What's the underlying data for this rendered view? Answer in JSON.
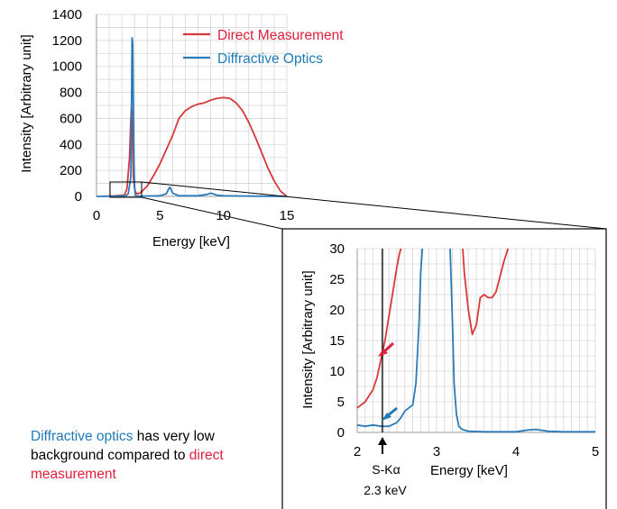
{
  "colors": {
    "red": "#d9383a",
    "blue": "#2b7bba",
    "redText": "#e0203a",
    "blueText": "#1f7ab8",
    "grid": "#d6d6d6"
  },
  "chart_data": [
    {
      "type": "line",
      "xlabel": "Energy [keV]",
      "ylabel": "Intensity [Arbitrary unit]",
      "xlim": [
        0,
        15
      ],
      "ylim": [
        0,
        1400
      ],
      "xticks": [
        "0",
        "5",
        "10",
        "15"
      ],
      "yticks": [
        "0",
        "200",
        "400",
        "600",
        "800",
        "1000",
        "1200",
        "1400"
      ],
      "grid": true,
      "legend_position": "top-right",
      "series": [
        {
          "name": "Direct Measurement",
          "color": "#d9383a",
          "x": [
            0.5,
            1.5,
            2.2,
            2.4,
            2.6,
            2.7,
            2.75,
            2.8,
            2.85,
            2.9,
            3.0,
            3.1,
            3.2,
            3.4,
            3.6,
            3.8,
            4.0,
            4.5,
            5.0,
            5.5,
            6.0,
            6.5,
            7.0,
            7.5,
            8.0,
            8.5,
            9.0,
            9.5,
            10.0,
            10.5,
            11.0,
            11.5,
            12.0,
            12.5,
            13.0,
            13.5,
            14.0,
            14.5,
            15.0
          ],
          "y": [
            0,
            5,
            10,
            60,
            300,
            580,
            690,
            630,
            380,
            150,
            60,
            30,
            20,
            25,
            40,
            60,
            80,
            160,
            250,
            360,
            470,
            600,
            660,
            690,
            710,
            720,
            740,
            755,
            760,
            755,
            720,
            660,
            570,
            460,
            340,
            220,
            120,
            40,
            0
          ]
        },
        {
          "name": "Diffractive Optics",
          "color": "#2b7bba",
          "x": [
            0,
            2.0,
            2.3,
            2.5,
            2.7,
            2.75,
            2.8,
            2.85,
            2.9,
            2.95,
            3.0,
            3.05,
            3.1,
            3.2,
            3.5,
            4.0,
            5.0,
            5.5,
            5.7,
            5.8,
            6.0,
            6.5,
            8.0,
            8.7,
            9.0,
            9.5,
            10.0,
            12.0,
            15.0
          ],
          "y": [
            0,
            2,
            5,
            20,
            150,
            600,
            1220,
            1180,
            700,
            250,
            80,
            20,
            5,
            2,
            2,
            3,
            5,
            20,
            60,
            70,
            25,
            5,
            5,
            15,
            25,
            10,
            5,
            2,
            0
          ]
        }
      ]
    },
    {
      "type": "line",
      "xlabel": "Energy [keV]",
      "ylabel": "Intensity [Arbitrary unit]",
      "xlim": [
        2,
        5
      ],
      "ylim": [
        0,
        30
      ],
      "xticks": [
        "2",
        "3",
        "4",
        "5"
      ],
      "yticks": [
        "0",
        "5",
        "10",
        "15",
        "20",
        "25",
        "30"
      ],
      "grid": true,
      "annotations": [
        {
          "label": "S-Kα",
          "sublabel": "2.3 keV",
          "x": 2.3
        }
      ],
      "series": [
        {
          "name": "Direct Measurement",
          "color": "#d9383a",
          "x": [
            2.0,
            2.05,
            2.1,
            2.15,
            2.2,
            2.25,
            2.3,
            2.35,
            2.4,
            2.45,
            2.5,
            2.53,
            2.55
          ],
          "y": [
            4,
            4.5,
            5,
            6,
            7,
            9,
            12,
            15,
            19,
            23,
            27,
            29,
            30
          ]
        },
        {
          "name": "Direct Measurement (right)",
          "color": "#d9383a",
          "x": [
            3.33,
            3.35,
            3.4,
            3.45,
            3.5,
            3.55,
            3.6,
            3.65,
            3.7,
            3.75,
            3.8,
            3.85,
            3.9
          ],
          "y": [
            30,
            26,
            20,
            16,
            17.5,
            22,
            22.5,
            22,
            22,
            23,
            25.5,
            28,
            30
          ]
        },
        {
          "name": "Diffractive Optics",
          "color": "#2b7bba",
          "x": [
            2.0,
            2.1,
            2.2,
            2.3,
            2.4,
            2.5,
            2.55,
            2.6,
            2.65,
            2.7,
            2.74,
            2.78,
            2.8,
            2.82
          ],
          "y": [
            1.2,
            1.0,
            1.2,
            1.0,
            1.0,
            1.6,
            2.4,
            3.5,
            4.0,
            4.5,
            8,
            18,
            26,
            30
          ]
        },
        {
          "name": "Diffractive Optics (right)",
          "color": "#2b7bba",
          "x": [
            3.17,
            3.2,
            3.22,
            3.25,
            3.28,
            3.32,
            3.4,
            3.6,
            4.0,
            4.15,
            4.25,
            4.4,
            4.6,
            5.0
          ],
          "y": [
            30,
            18,
            8,
            3,
            1,
            0.5,
            0.2,
            0.1,
            0.1,
            0.4,
            0.5,
            0.2,
            0.1,
            0.1
          ]
        }
      ]
    }
  ],
  "legend": {
    "direct": "Direct Measurement",
    "diffractive": "Diffractive Optics"
  },
  "note": {
    "part1": "Diffractive optics",
    "part2": " has very low background compared to ",
    "part3": "direct measurement"
  }
}
